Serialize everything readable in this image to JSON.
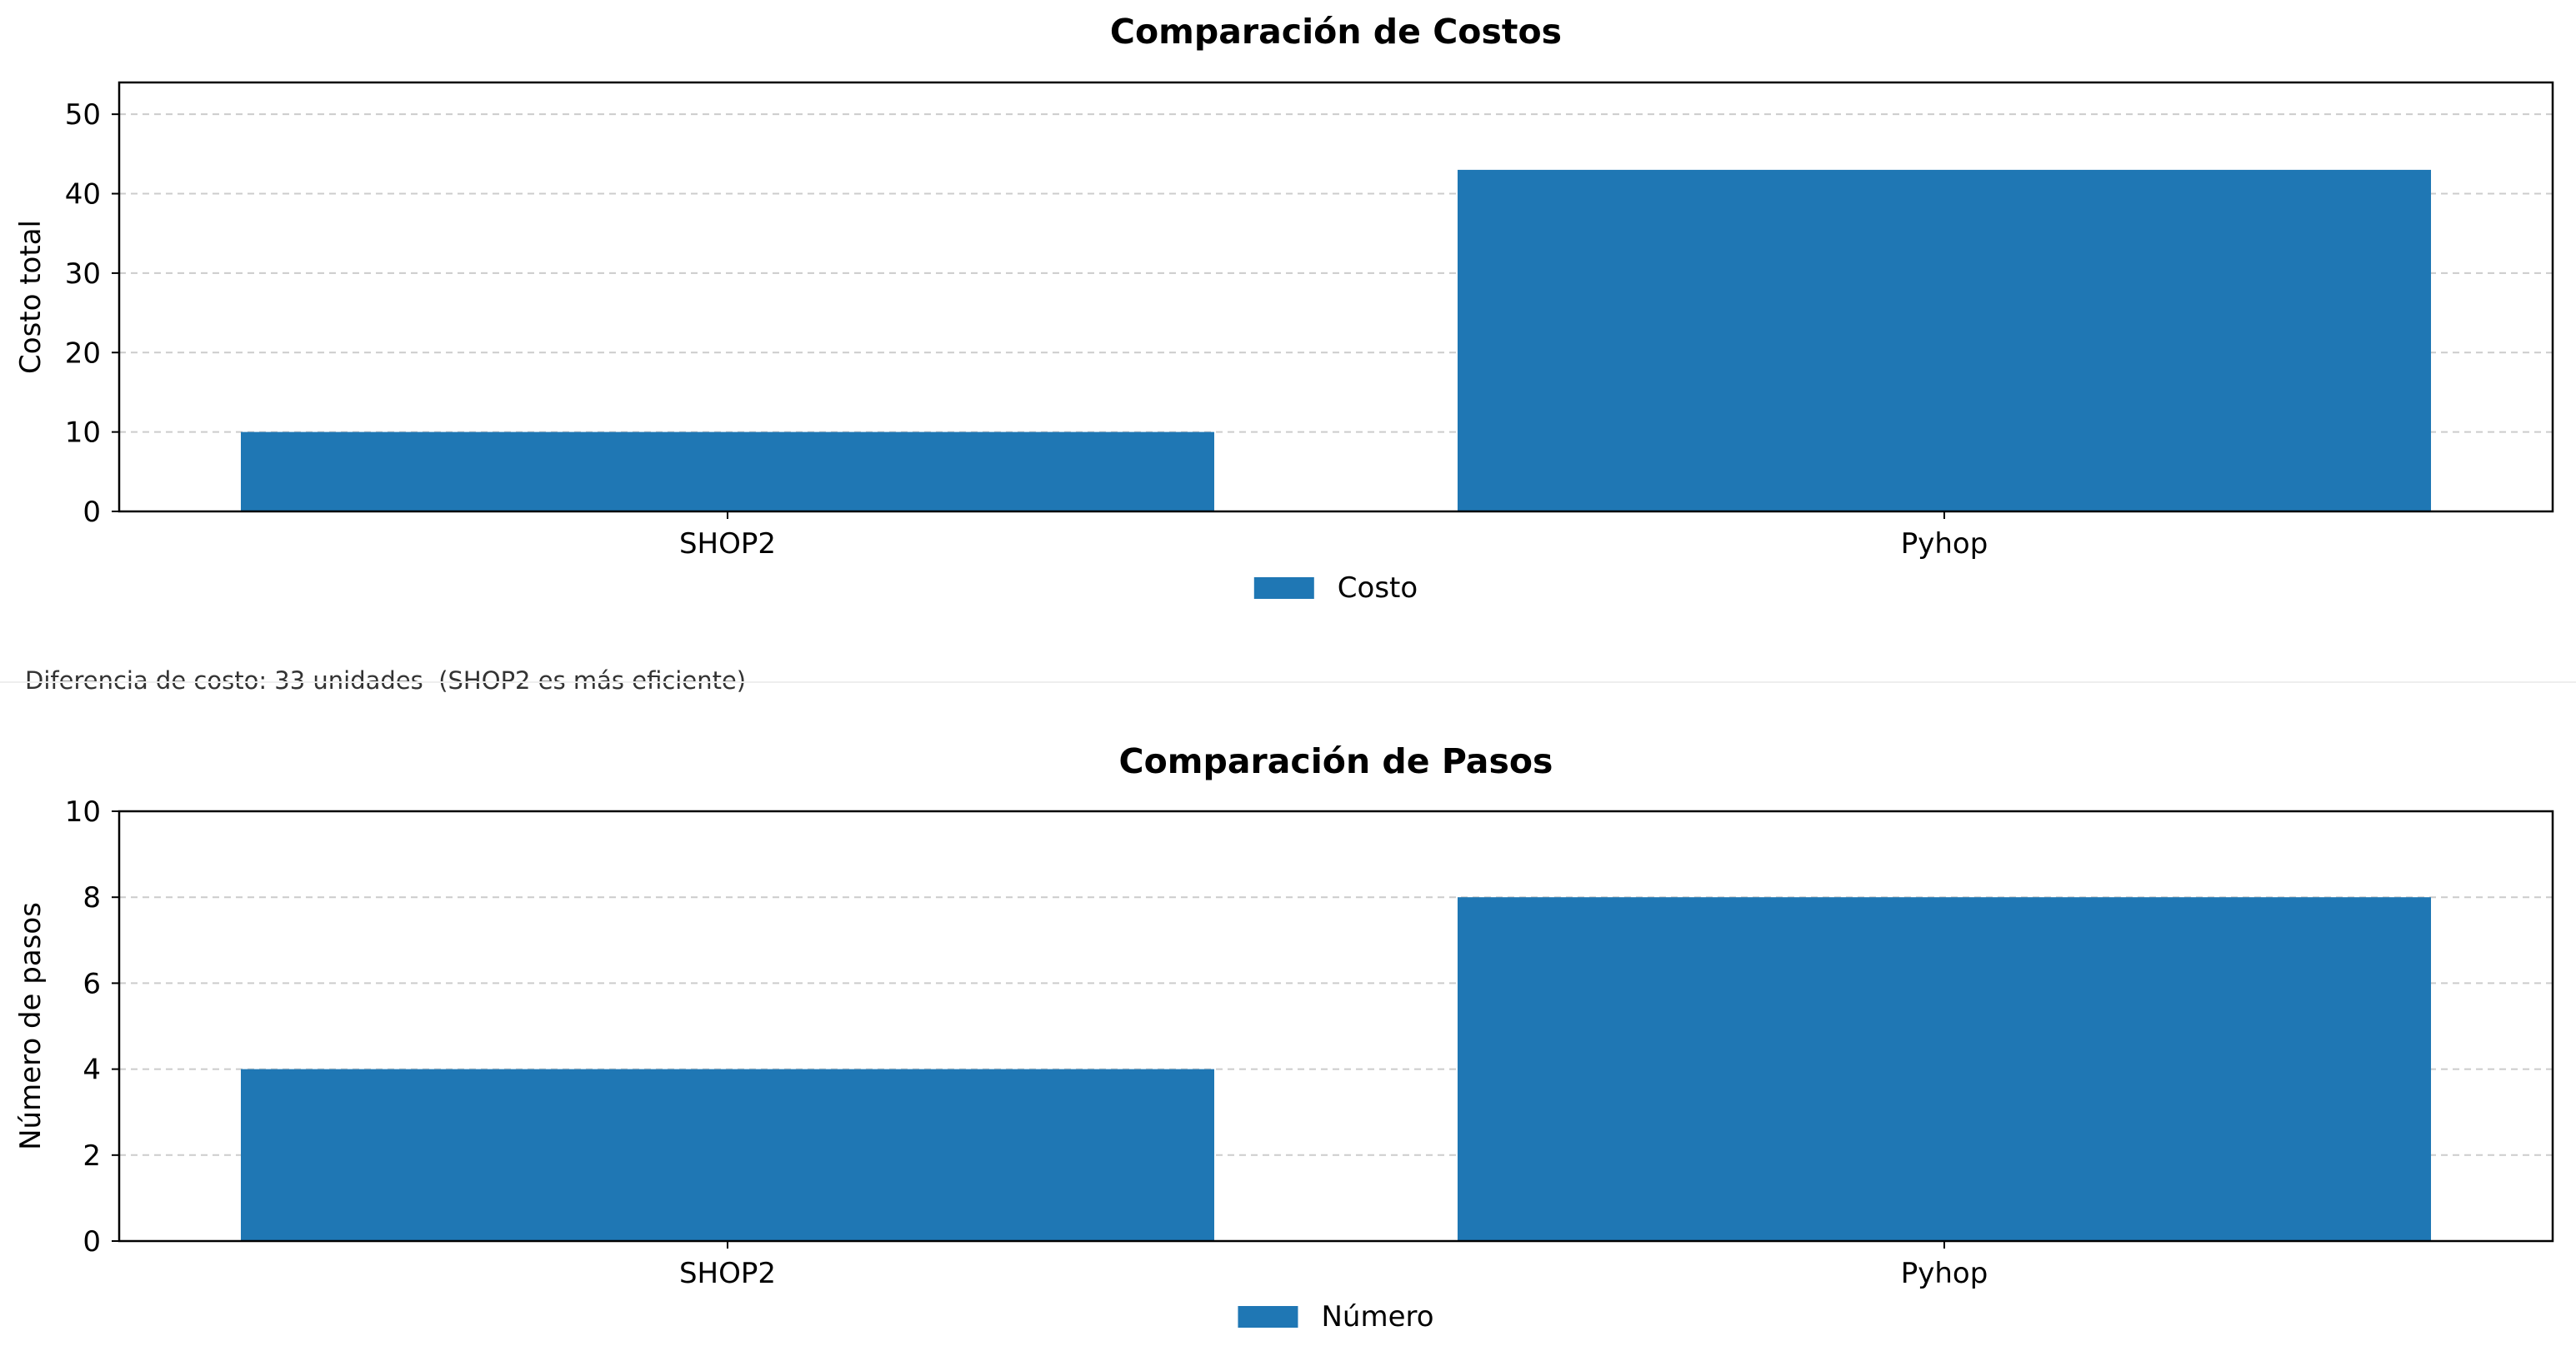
{
  "note": "Diferencia de costo: 33 unidades  (SHOP2 es más eficiente)",
  "colors": {
    "bar": "#1f77b4",
    "grid": "#cccccc",
    "axis": "#000000"
  },
  "chart_data": [
    {
      "type": "bar",
      "title": "Comparación de Costos",
      "xlabel": "",
      "ylabel": "Costo total",
      "categories": [
        "SHOP2",
        "Pyhop"
      ],
      "series": [
        {
          "name": "Costo",
          "values": [
            10,
            43
          ]
        }
      ],
      "ylim": [
        0,
        54
      ],
      "yticks": [
        0,
        10,
        20,
        30,
        40,
        50
      ],
      "grid": true,
      "legend": "bottom-center"
    },
    {
      "type": "bar",
      "title": "Comparación de Pasos",
      "xlabel": "",
      "ylabel": "Número de pasos",
      "categories": [
        "SHOP2",
        "Pyhop"
      ],
      "series": [
        {
          "name": "Número",
          "values": [
            4,
            8
          ]
        }
      ],
      "ylim": [
        0,
        10
      ],
      "yticks": [
        0,
        2,
        4,
        6,
        8,
        10
      ],
      "grid": true,
      "legend": "bottom-center"
    }
  ]
}
